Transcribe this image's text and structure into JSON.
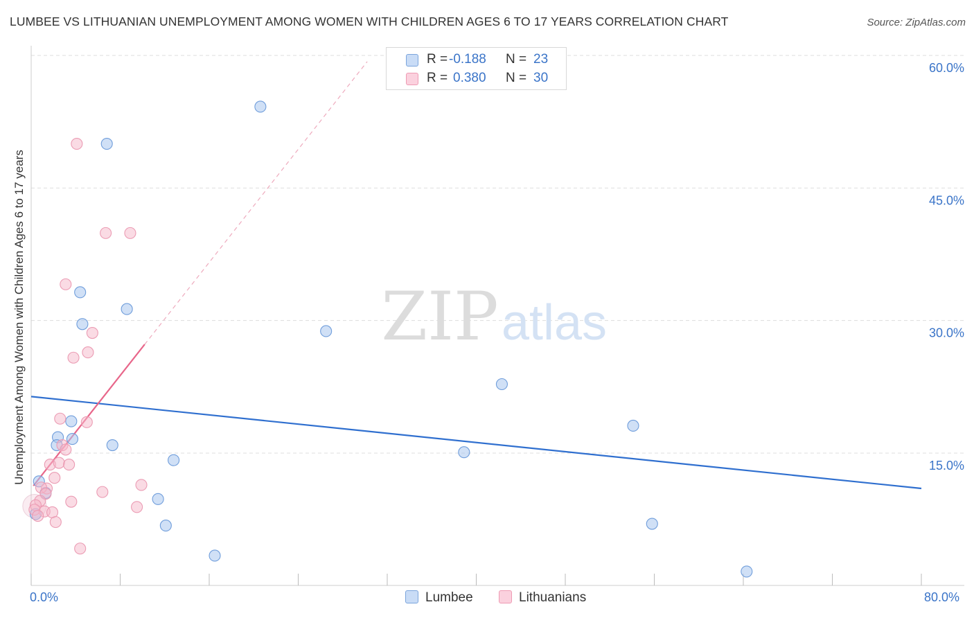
{
  "title": "LUMBEE VS LITHUANIAN UNEMPLOYMENT AMONG WOMEN WITH CHILDREN AGES 6 TO 17 YEARS CORRELATION CHART",
  "source": "Source: ZipAtlas.com",
  "watermark": {
    "zip": "ZIP",
    "atlas": "atlas"
  },
  "legend_stats": [
    {
      "r_label": "R =",
      "r_value": "-0.188",
      "n_label": "N =",
      "n_value": "23",
      "color": "#a9c7ef"
    },
    {
      "r_label": "R =",
      "r_value": "0.380",
      "n_label": "N =",
      "n_value": "30",
      "color": "#f6b8ca"
    }
  ],
  "chart_data": {
    "type": "scatter",
    "title": "LUMBEE VS LITHUANIAN UNEMPLOYMENT AMONG WOMEN WITH CHILDREN AGES 6 TO 17 YEARS CORRELATION CHART",
    "xlabel": "",
    "ylabel": "Unemployment Among Women with Children Ages 6 to 17 years",
    "xlim": [
      0,
      80
    ],
    "ylim": [
      0,
      60
    ],
    "x_tick_labels": [
      "0.0%",
      "80.0%"
    ],
    "y_tick_labels": [
      "15.0%",
      "30.0%",
      "45.0%",
      "60.0%"
    ],
    "y_ticks": [
      15,
      30,
      45,
      60
    ],
    "grid": true,
    "legend_position": "bottom-center",
    "series": [
      {
        "name": "Lumbee",
        "color": "#5b8fd6",
        "fill": "#a9c7ef",
        "points": [
          [
            20.6,
            54.2
          ],
          [
            6.8,
            50.0
          ],
          [
            4.4,
            33.2
          ],
          [
            8.6,
            31.3
          ],
          [
            4.6,
            29.6
          ],
          [
            26.5,
            28.8
          ],
          [
            42.3,
            22.8
          ],
          [
            54.1,
            18.1
          ],
          [
            3.6,
            18.6
          ],
          [
            2.4,
            16.8
          ],
          [
            3.7,
            16.6
          ],
          [
            2.3,
            15.9
          ],
          [
            7.3,
            15.9
          ],
          [
            38.9,
            15.1
          ],
          [
            12.8,
            14.2
          ],
          [
            0.7,
            11.8
          ],
          [
            1.3,
            10.5
          ],
          [
            11.4,
            9.8
          ],
          [
            12.1,
            6.8
          ],
          [
            55.8,
            7.0
          ],
          [
            16.5,
            3.4
          ],
          [
            64.3,
            1.6
          ],
          [
            0.4,
            8.1
          ]
        ],
        "trend": {
          "x0": 0,
          "y0": 21.4,
          "x1": 80,
          "y1": 11.0
        }
      },
      {
        "name": "Lithuanians",
        "color": "#e8708f",
        "fill": "#f6b8ca",
        "points": [
          [
            4.1,
            50.0
          ],
          [
            6.7,
            39.9
          ],
          [
            8.9,
            39.9
          ],
          [
            3.1,
            34.1
          ],
          [
            5.5,
            28.6
          ],
          [
            5.1,
            26.4
          ],
          [
            3.8,
            25.8
          ],
          [
            2.6,
            18.9
          ],
          [
            5.0,
            18.5
          ],
          [
            2.8,
            15.9
          ],
          [
            3.1,
            15.4
          ],
          [
            1.7,
            13.7
          ],
          [
            2.5,
            13.9
          ],
          [
            3.4,
            13.7
          ],
          [
            2.1,
            12.2
          ],
          [
            1.4,
            11.0
          ],
          [
            0.9,
            11.1
          ],
          [
            9.9,
            11.4
          ],
          [
            6.4,
            10.6
          ],
          [
            1.3,
            10.4
          ],
          [
            0.8,
            9.6
          ],
          [
            3.6,
            9.5
          ],
          [
            0.4,
            9.1
          ],
          [
            9.5,
            8.9
          ],
          [
            0.3,
            8.6
          ],
          [
            1.2,
            8.4
          ],
          [
            1.9,
            8.3
          ],
          [
            0.6,
            7.9
          ],
          [
            2.2,
            7.2
          ],
          [
            4.4,
            4.2
          ]
        ],
        "trend_solid": {
          "x0": 0.2,
          "y0": 11.3,
          "x1": 10.2,
          "y1": 27.3
        },
        "trend_dashed": {
          "x0": 10.2,
          "y0": 27.3,
          "x1": 30.2,
          "y1": 59.3
        }
      }
    ]
  }
}
